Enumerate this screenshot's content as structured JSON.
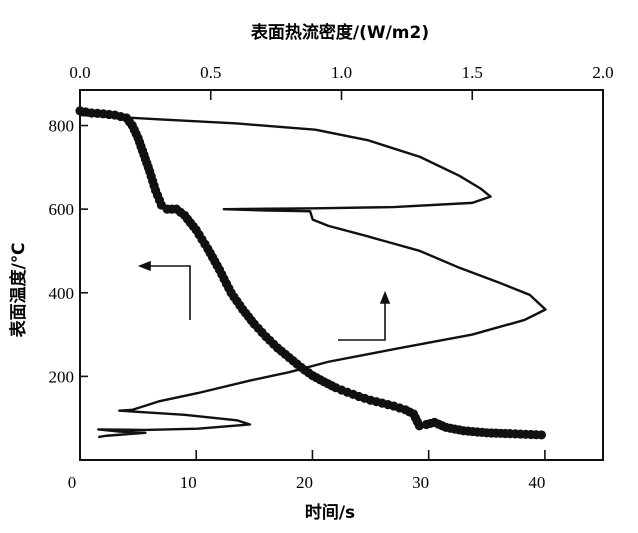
{
  "chart_data": {
    "type": "line",
    "xlabel": "时间/s",
    "x2label": "表面热流密度/(W/m2)",
    "ylabel": "表面温度/℃",
    "xlim": [
      0,
      45
    ],
    "x2lim": [
      0,
      2.0
    ],
    "ylim": [
      0,
      885
    ],
    "xticks": [
      "0",
      "10",
      "20",
      "30",
      "40"
    ],
    "x2ticks": [
      "0.0",
      "0.5",
      "1.0",
      "1.5",
      "2.0"
    ],
    "yticks": [
      "200",
      "400",
      "600",
      "800"
    ],
    "grid": false,
    "series": [
      {
        "marker": "dots",
        "axis": "bottom",
        "points": [
          [
            0,
            835
          ],
          [
            1,
            830
          ],
          [
            2,
            828
          ],
          [
            3,
            825
          ],
          [
            4,
            818
          ],
          [
            4.5,
            800
          ],
          [
            5,
            770
          ],
          [
            5.5,
            730
          ],
          [
            6,
            690
          ],
          [
            6.5,
            645
          ],
          [
            7,
            610
          ],
          [
            7.5,
            600
          ],
          [
            8.3,
            600
          ],
          [
            9,
            585
          ],
          [
            10,
            550
          ],
          [
            11,
            505
          ],
          [
            12,
            455
          ],
          [
            13,
            400
          ],
          [
            14,
            360
          ],
          [
            15,
            325
          ],
          [
            16,
            295
          ],
          [
            17,
            268
          ],
          [
            18,
            245
          ],
          [
            19,
            222
          ],
          [
            20,
            202
          ],
          [
            21,
            187
          ],
          [
            22,
            173
          ],
          [
            23,
            162
          ],
          [
            24,
            152
          ],
          [
            25,
            143
          ],
          [
            26,
            136
          ],
          [
            27,
            129
          ],
          [
            28,
            120
          ],
          [
            28.7,
            110
          ],
          [
            29.2,
            82
          ],
          [
            29.8,
            85
          ],
          [
            30.5,
            90
          ],
          [
            31.5,
            78
          ],
          [
            33,
            70
          ],
          [
            35,
            65
          ],
          [
            37,
            63
          ],
          [
            39.7,
            60
          ]
        ]
      },
      {
        "marker": "line",
        "axis": "top",
        "points": [
          [
            0.0,
            825
          ],
          [
            0.3,
            815
          ],
          [
            0.6,
            805
          ],
          [
            0.9,
            790
          ],
          [
            1.1,
            765
          ],
          [
            1.3,
            725
          ],
          [
            1.45,
            680
          ],
          [
            1.53,
            650
          ],
          [
            1.57,
            630
          ],
          [
            1.5,
            615
          ],
          [
            1.2,
            605
          ],
          [
            0.9,
            602
          ],
          [
            0.55,
            600
          ],
          [
            0.7,
            597
          ],
          [
            0.88,
            595
          ],
          [
            0.89,
            575
          ],
          [
            0.95,
            560
          ],
          [
            1.1,
            535
          ],
          [
            1.3,
            500
          ],
          [
            1.45,
            460
          ],
          [
            1.6,
            425
          ],
          [
            1.72,
            395
          ],
          [
            1.78,
            360
          ],
          [
            1.7,
            335
          ],
          [
            1.5,
            300
          ],
          [
            1.2,
            265
          ],
          [
            0.95,
            235
          ],
          [
            0.8,
            210
          ],
          [
            0.65,
            190
          ],
          [
            0.45,
            160
          ],
          [
            0.3,
            140
          ],
          [
            0.2,
            120
          ],
          [
            0.15,
            118
          ],
          [
            0.4,
            108
          ],
          [
            0.6,
            95
          ],
          [
            0.65,
            85
          ],
          [
            0.45,
            75
          ],
          [
            0.25,
            72
          ],
          [
            0.07,
            73
          ],
          [
            0.15,
            68
          ],
          [
            0.25,
            65
          ],
          [
            0.1,
            58
          ],
          [
            0.07,
            55
          ]
        ]
      }
    ],
    "annotations": [
      {
        "type": "arrow",
        "points_to": "left axis"
      },
      {
        "type": "arrow",
        "points_to": "top axis"
      }
    ]
  }
}
